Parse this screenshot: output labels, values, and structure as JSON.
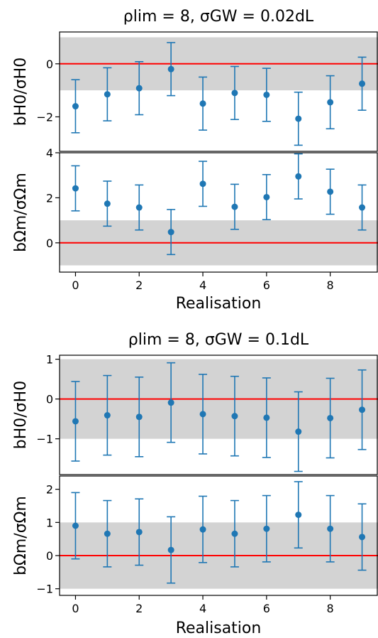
{
  "colors": {
    "points": "#1f77b4",
    "zero_line": "#ff0000",
    "band": "#d3d3d3"
  },
  "chart_data": [
    {
      "type": "scatter",
      "title": "ρlim = 8, σGW = 0.02dL",
      "xlabel": "Realisation",
      "x_ticks": [
        0,
        2,
        4,
        6,
        8
      ],
      "xlim": [
        -0.5,
        9.5
      ],
      "panels": [
        {
          "ylabel": "bH0/σH0",
          "ylim": [
            -3.3,
            1.2
          ],
          "y_ticks": [
            -2,
            0
          ],
          "band": [
            -1,
            1
          ],
          "zero_line": 0,
          "series": [
            {
              "x": [
                0,
                1,
                2,
                3,
                4,
                5,
                6,
                7,
                8,
                9
              ],
              "y": [
                -1.6,
                -1.15,
                -0.92,
                -0.2,
                -1.5,
                -1.1,
                -1.17,
                -2.07,
                -1.45,
                -0.75
              ],
              "yerr": [
                1.0,
                1.0,
                1.0,
                1.0,
                1.0,
                1.0,
                1.0,
                1.0,
                1.0,
                1.0
              ]
            }
          ]
        },
        {
          "ylabel": "bΩm/σΩm",
          "ylim": [
            -1.3,
            4.0
          ],
          "y_ticks": [
            0,
            2,
            4
          ],
          "band": [
            -1,
            1
          ],
          "zero_line": 0,
          "series": [
            {
              "x": [
                0,
                1,
                2,
                3,
                4,
                5,
                6,
                7,
                8,
                9
              ],
              "y": [
                2.42,
                1.74,
                1.57,
                0.48,
                2.62,
                1.6,
                2.03,
                2.95,
                2.27,
                1.57
              ],
              "yerr": [
                1.0,
                1.0,
                1.0,
                1.0,
                1.0,
                1.0,
                1.0,
                1.0,
                1.0,
                1.0
              ]
            }
          ]
        }
      ]
    },
    {
      "type": "scatter",
      "title": "ρlim = 8, σGW = 0.1dL",
      "xlabel": "Realisation",
      "x_ticks": [
        0,
        2,
        4,
        6,
        8
      ],
      "xlim": [
        -0.5,
        9.5
      ],
      "panels": [
        {
          "ylabel": "bH0/σH0",
          "ylim": [
            -1.9,
            1.1
          ],
          "y_ticks": [
            -1,
            0,
            1
          ],
          "band": [
            -1,
            1
          ],
          "zero_line": 0,
          "series": [
            {
              "x": [
                0,
                1,
                2,
                3,
                4,
                5,
                6,
                7,
                8,
                9
              ],
              "y": [
                -0.56,
                -0.41,
                -0.45,
                -0.09,
                -0.38,
                -0.43,
                -0.47,
                -0.82,
                -0.48,
                -0.27
              ],
              "yerr": [
                1.0,
                1.0,
                1.0,
                1.0,
                1.0,
                1.0,
                1.0,
                1.0,
                1.0,
                1.0
              ]
            }
          ]
        },
        {
          "ylabel": "bΩm/σΩm",
          "ylim": [
            -1.2,
            2.4
          ],
          "y_ticks": [
            -1,
            0,
            1,
            2
          ],
          "band": [
            -1,
            1
          ],
          "zero_line": 0,
          "series": [
            {
              "x": [
                0,
                1,
                2,
                3,
                4,
                5,
                6,
                7,
                8,
                9
              ],
              "y": [
                0.9,
                0.66,
                0.71,
                0.17,
                0.79,
                0.66,
                0.81,
                1.23,
                0.81,
                0.56
              ],
              "yerr": [
                1.0,
                1.0,
                1.0,
                1.0,
                1.0,
                1.0,
                1.0,
                1.0,
                1.0,
                1.0
              ]
            }
          ]
        }
      ]
    }
  ]
}
